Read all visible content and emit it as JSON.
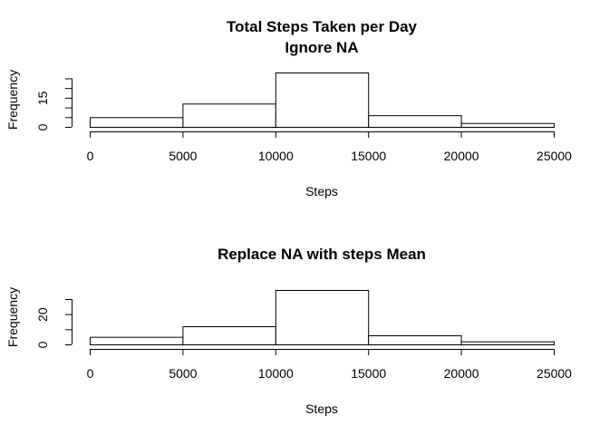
{
  "chart_data": [
    {
      "type": "bar",
      "title": "Total Steps Taken per Day",
      "subtitle": "Ignore NA",
      "xlabel": "Steps",
      "ylabel": "Frequency",
      "bins": [
        [
          0,
          5000
        ],
        [
          5000,
          10000
        ],
        [
          10000,
          15000
        ],
        [
          15000,
          20000
        ],
        [
          20000,
          25000
        ]
      ],
      "values": [
        5,
        12,
        28,
        6,
        2
      ],
      "xlim": [
        0,
        25000
      ],
      "ylim": [
        0,
        28
      ],
      "xticks": [
        0,
        5000,
        10000,
        15000,
        20000,
        25000
      ],
      "yticks": [
        0,
        5,
        10,
        15,
        20,
        25
      ],
      "yticklabels": [
        "0",
        "",
        "",
        "15",
        "",
        ""
      ]
    },
    {
      "type": "bar",
      "title": "Replace NA with steps Mean",
      "subtitle": "",
      "xlabel": "Steps",
      "ylabel": "Frequency",
      "bins": [
        [
          0,
          5000
        ],
        [
          5000,
          10000
        ],
        [
          10000,
          15000
        ],
        [
          15000,
          20000
        ],
        [
          20000,
          25000
        ]
      ],
      "values": [
        5,
        12,
        36,
        6,
        2
      ],
      "xlim": [
        0,
        25000
      ],
      "ylim": [
        0,
        36
      ],
      "xticks": [
        0,
        5000,
        10000,
        15000,
        20000,
        25000
      ],
      "yticks": [
        0,
        10,
        20,
        30
      ],
      "yticklabels": [
        "0",
        "",
        "20",
        ""
      ]
    }
  ]
}
